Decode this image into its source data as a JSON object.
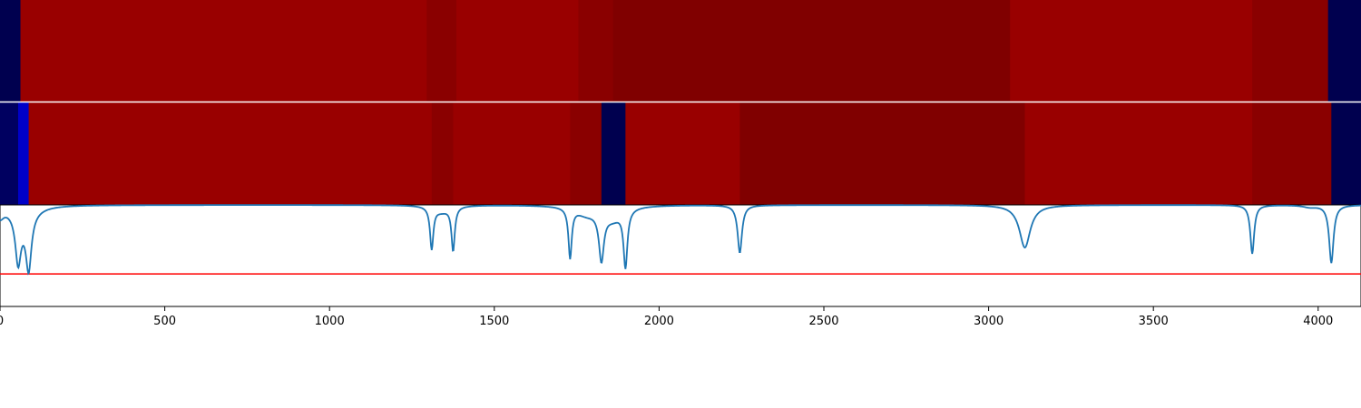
{
  "chart_data": [
    {
      "type": "heatmap",
      "panel": "top-band",
      "xlim": [
        0,
        4130
      ],
      "segments": [
        {
          "x0": 0,
          "x1": 62,
          "color": "#00004f"
        },
        {
          "x0": 62,
          "x1": 1295,
          "color": "#990000"
        },
        {
          "x0": 1295,
          "x1": 1385,
          "color": "#8a0000"
        },
        {
          "x0": 1385,
          "x1": 1755,
          "color": "#990000"
        },
        {
          "x0": 1755,
          "x1": 1860,
          "color": "#8a0000"
        },
        {
          "x0": 1860,
          "x1": 3065,
          "color": "#800000"
        },
        {
          "x0": 3065,
          "x1": 3800,
          "color": "#990000"
        },
        {
          "x0": 3800,
          "x1": 4030,
          "color": "#8a0000"
        },
        {
          "x0": 4030,
          "x1": 4130,
          "color": "#00004f"
        }
      ]
    },
    {
      "type": "heatmap",
      "panel": "middle-band",
      "xlim": [
        0,
        4130
      ],
      "segments": [
        {
          "x0": 0,
          "x1": 55,
          "color": "#000060"
        },
        {
          "x0": 55,
          "x1": 87,
          "color": "#0000c8"
        },
        {
          "x0": 87,
          "x1": 1310,
          "color": "#990000"
        },
        {
          "x0": 1310,
          "x1": 1375,
          "color": "#8a0000"
        },
        {
          "x0": 1375,
          "x1": 1730,
          "color": "#990000"
        },
        {
          "x0": 1730,
          "x1": 1825,
          "color": "#8a0000"
        },
        {
          "x0": 1825,
          "x1": 1898,
          "color": "#00004f"
        },
        {
          "x0": 1898,
          "x1": 2245,
          "color": "#990000"
        },
        {
          "x0": 2245,
          "x1": 3110,
          "color": "#800000"
        },
        {
          "x0": 3110,
          "x1": 3800,
          "color": "#990000"
        },
        {
          "x0": 3800,
          "x1": 4040,
          "color": "#8a0000"
        },
        {
          "x0": 4040,
          "x1": 4130,
          "color": "#00004f"
        }
      ]
    },
    {
      "type": "line",
      "panel": "signal",
      "xlim": [
        0,
        4130
      ],
      "ylim": [
        -1.0,
        0.0
      ],
      "xticks": [
        "0",
        "500",
        "1000",
        "1500",
        "2000",
        "2500",
        "3000",
        "3500",
        "4000"
      ],
      "xtick_values": [
        0,
        500,
        1000,
        1500,
        2000,
        2500,
        3000,
        3500,
        4000
      ],
      "line_color": "#1f77b4",
      "threshold": {
        "y": -0.68,
        "color": "#ff0000"
      },
      "dips": [
        {
          "x": 0,
          "depth": 0.1,
          "width": 14
        },
        {
          "x": 55,
          "depth": 0.46,
          "width": 10
        },
        {
          "x": 87,
          "depth": 0.53,
          "width": 10
        },
        {
          "x": 70,
          "depth": 0.12,
          "width": 40
        },
        {
          "x": 1310,
          "depth": 0.41,
          "width": 6
        },
        {
          "x": 1375,
          "depth": 0.43,
          "width": 6
        },
        {
          "x": 1340,
          "depth": 0.06,
          "width": 30
        },
        {
          "x": 1730,
          "depth": 0.49,
          "width": 6
        },
        {
          "x": 1825,
          "depth": 0.47,
          "width": 9
        },
        {
          "x": 1898,
          "depth": 0.56,
          "width": 7
        },
        {
          "x": 1780,
          "depth": 0.08,
          "width": 40
        },
        {
          "x": 1860,
          "depth": 0.12,
          "width": 35
        },
        {
          "x": 2245,
          "depth": 0.47,
          "width": 8
        },
        {
          "x": 3110,
          "depth": 0.42,
          "width": 20
        },
        {
          "x": 3800,
          "depth": 0.48,
          "width": 7
        },
        {
          "x": 3975,
          "depth": 0.02,
          "width": 25
        },
        {
          "x": 4040,
          "depth": 0.57,
          "width": 8
        }
      ]
    }
  ]
}
